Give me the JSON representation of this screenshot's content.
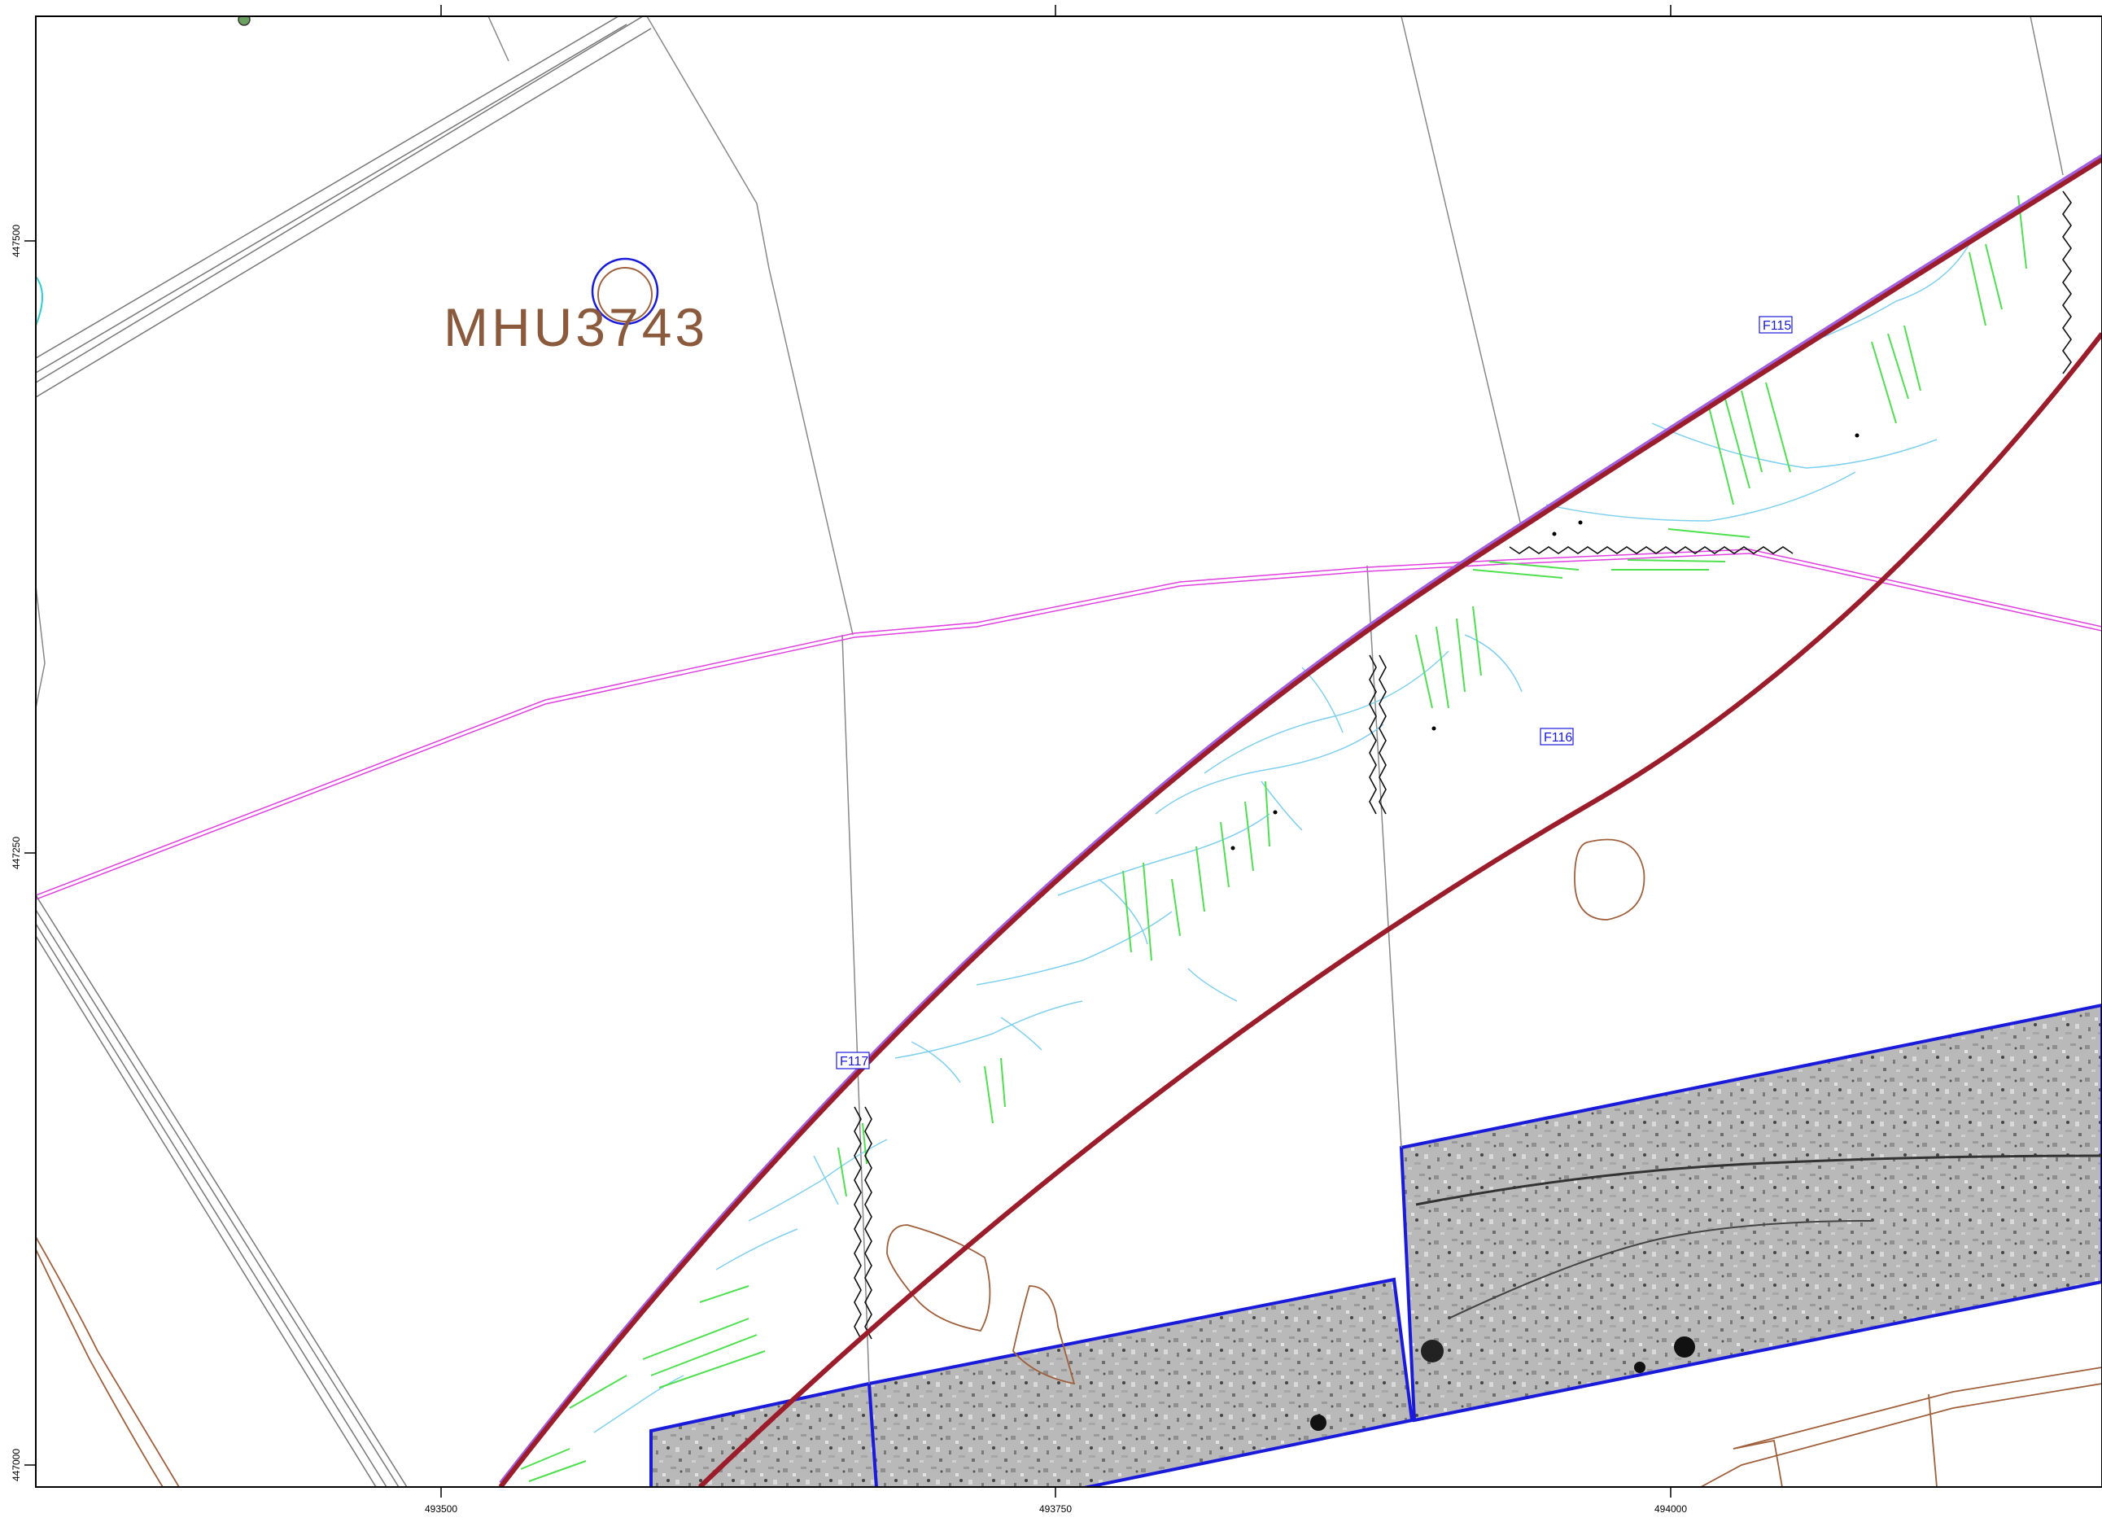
{
  "map": {
    "site_label": "MHU3743",
    "x_axis_ticks": [
      "493500",
      "493750",
      "494000"
    ],
    "y_axis_ticks": [
      "447500",
      "447250",
      "447000"
    ],
    "feature_labels": [
      "F115",
      "F116",
      "F117"
    ]
  },
  "colors": {
    "frame": "#000000",
    "corridor_boundary": "#9b1c2a",
    "corridor_edge_accent": "#a060e0",
    "survey_outline": "#1a1adb",
    "parish_boundary": "#e040e0",
    "field_boundary": "#888888",
    "contour": "#a0603c",
    "drainage": "#7fd0ef",
    "linear_anomaly": "#4ee04e",
    "background": "#ffffff"
  }
}
